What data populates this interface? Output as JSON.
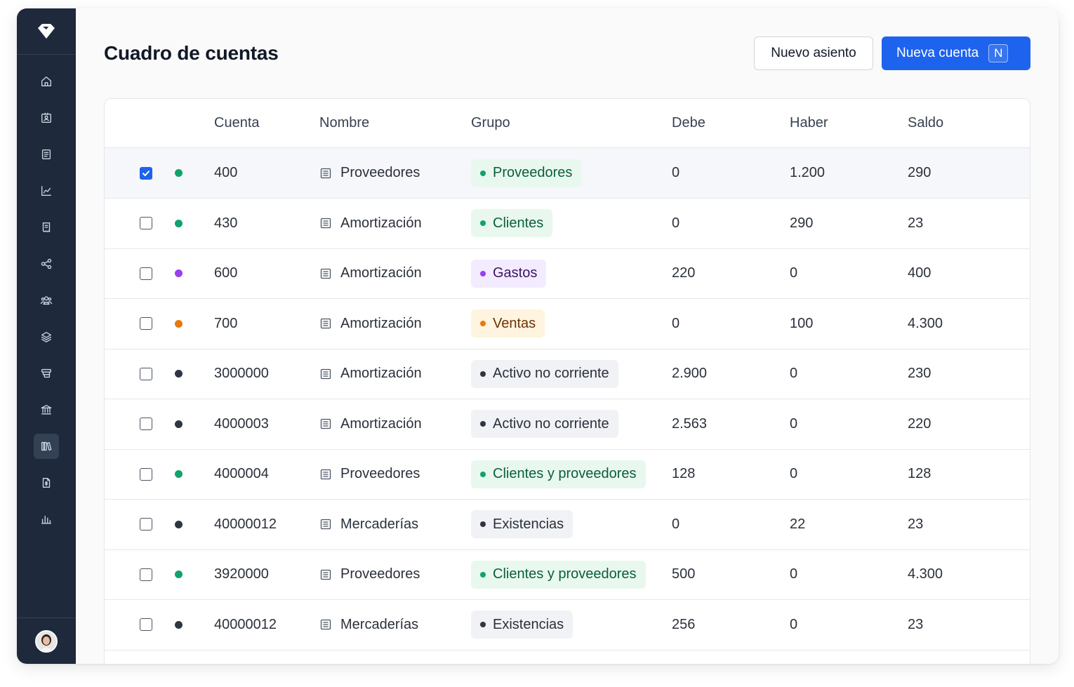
{
  "page": {
    "title": "Cuadro de cuentas",
    "new_entry_label": "Nuevo asiento",
    "new_account_label": "Nueva cuenta",
    "new_account_shortcut": "N"
  },
  "sidebar": {
    "logo_icon": "diamond-logo-icon",
    "items": [
      {
        "icon": "home-icon",
        "active": false
      },
      {
        "icon": "contact-card-icon",
        "active": false
      },
      {
        "icon": "invoice-icon",
        "active": false
      },
      {
        "icon": "line-chart-icon",
        "active": false
      },
      {
        "icon": "receipt-icon",
        "active": false
      },
      {
        "icon": "share-nodes-icon",
        "active": false
      },
      {
        "icon": "users-icon",
        "active": false
      },
      {
        "icon": "layers-icon",
        "active": false
      },
      {
        "icon": "stack-icon",
        "active": false
      },
      {
        "icon": "bank-icon",
        "active": false
      },
      {
        "icon": "books-icon",
        "active": true
      },
      {
        "icon": "document-dollar-icon",
        "active": false
      },
      {
        "icon": "bar-chart-icon",
        "active": false
      }
    ]
  },
  "table": {
    "columns": [
      "Cuenta",
      "Nombre",
      "Grupo",
      "Debe",
      "Haber",
      "Saldo"
    ],
    "rows": [
      {
        "selected": true,
        "dot": "#10a36b",
        "cuenta": "400",
        "nombre": "Proveedores",
        "grupo": "Proveedores",
        "grupo_style": "green",
        "debe": "0",
        "haber": "1.200",
        "saldo": "290"
      },
      {
        "selected": false,
        "dot": "#10a36b",
        "cuenta": "430",
        "nombre": "Amortización",
        "grupo": "Clientes",
        "grupo_style": "green",
        "debe": "0",
        "haber": "290",
        "saldo": "23"
      },
      {
        "selected": false,
        "dot": "#9b3ff0",
        "cuenta": "600",
        "nombre": "Amortización",
        "grupo": "Gastos",
        "grupo_style": "purple",
        "debe": "220",
        "haber": "0",
        "saldo": "400"
      },
      {
        "selected": false,
        "dot": "#e8790c",
        "cuenta": "700",
        "nombre": "Amortización",
        "grupo": "Ventas",
        "grupo_style": "orange",
        "debe": "0",
        "haber": "100",
        "saldo": "4.300"
      },
      {
        "selected": false,
        "dot": "#2f3542",
        "cuenta": "3000000",
        "nombre": "Amortización",
        "grupo": "Activo no corriente",
        "grupo_style": "gray",
        "debe": "2.900",
        "haber": "0",
        "saldo": "230"
      },
      {
        "selected": false,
        "dot": "#2f3542",
        "cuenta": "4000003",
        "nombre": "Amortización",
        "grupo": "Activo no corriente",
        "grupo_style": "gray",
        "debe": "2.563",
        "haber": "0",
        "saldo": "220"
      },
      {
        "selected": false,
        "dot": "#10a36b",
        "cuenta": "4000004",
        "nombre": "Proveedores",
        "grupo": "Clientes y proveedores",
        "grupo_style": "green",
        "debe": "128",
        "haber": "0",
        "saldo": "128"
      },
      {
        "selected": false,
        "dot": "#2f3542",
        "cuenta": "40000012",
        "nombre": "Mercaderías",
        "grupo": "Existencias",
        "grupo_style": "gray",
        "debe": "0",
        "haber": "22",
        "saldo": "23"
      },
      {
        "selected": false,
        "dot": "#10a36b",
        "cuenta": "3920000",
        "nombre": "Proveedores",
        "grupo": "Clientes y proveedores",
        "grupo_style": "green",
        "debe": "500",
        "haber": "0",
        "saldo": "4.300"
      },
      {
        "selected": false,
        "dot": "#2f3542",
        "cuenta": "40000012",
        "nombre": "Mercaderías",
        "grupo": "Existencias",
        "grupo_style": "gray",
        "debe": "256",
        "haber": "0",
        "saldo": "23"
      }
    ]
  },
  "colors": {
    "sidebar_bg": "#1e293b",
    "primary": "#1d63ed",
    "badge_green_bg": "#e9f8ef",
    "badge_green_text": "#0b5e3b",
    "badge_green_dot": "#10a36b",
    "badge_purple_bg": "#f3ebff",
    "badge_purple_text": "#3b1466",
    "badge_purple_dot": "#9b3ff0",
    "badge_orange_bg": "#fff4e0",
    "badge_orange_text": "#6b3306",
    "badge_orange_dot": "#e8790c",
    "badge_gray_bg": "#f0f2f5",
    "badge_gray_text": "#2b303b",
    "badge_gray_dot": "#2f3542"
  }
}
